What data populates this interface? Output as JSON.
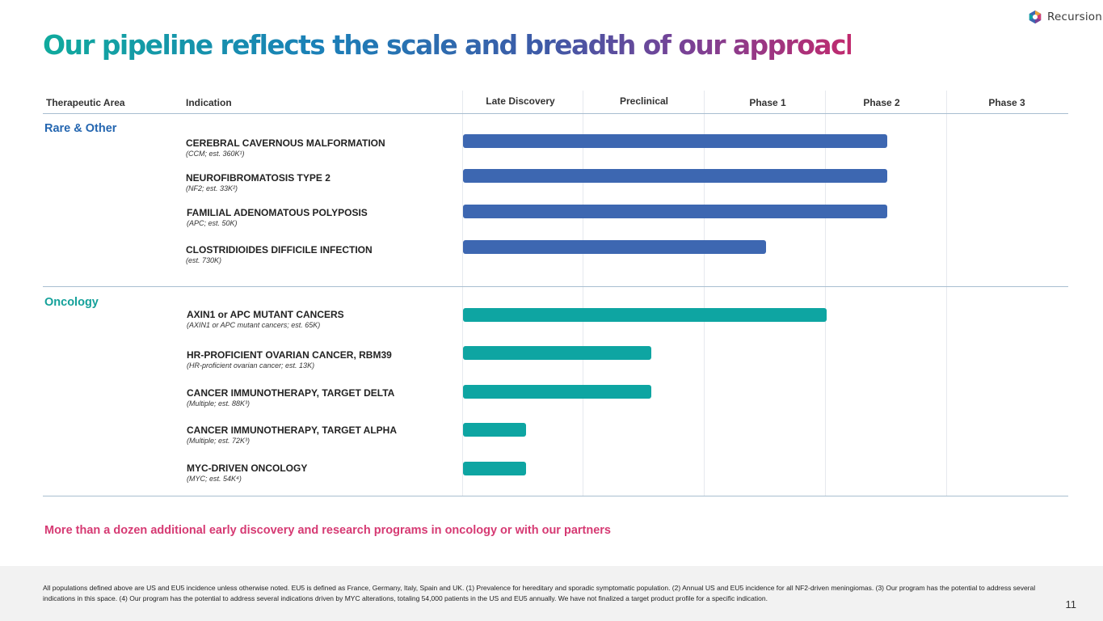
{
  "logo": {
    "text": "Recursion"
  },
  "title": "Our pipeline reflects the scale and breadth of our approach",
  "columns": {
    "therapeutic_area": "Therapeutic Area",
    "indication": "Indication",
    "stages": [
      "Late Discovery",
      "Preclinical",
      "Phase 1",
      "Phase 2",
      "Phase 3"
    ]
  },
  "areas": {
    "rare": "Rare & Other",
    "oncology": "Oncology"
  },
  "programs": [
    {
      "name": "CEREBRAL CAVERNOUS MALFORMATION",
      "sub": "(CCM; est. 360K¹)",
      "area": "rare",
      "progress_stages": 3.5
    },
    {
      "name": "NEUROFIBROMATOSIS TYPE 2",
      "sub": "(NF2; est. 33K²)",
      "area": "rare",
      "progress_stages": 3.5
    },
    {
      "name": "FAMILIAL ADENOMATOUS POLYPOSIS",
      "sub": "(APC; est. 50K)",
      "area": "rare",
      "progress_stages": 3.5
    },
    {
      "name": "CLOSTRIDIOIDES DIFFICILE INFECTION",
      "sub": "(est. 730K)",
      "area": "rare",
      "progress_stages": 2.5
    },
    {
      "name": "AXIN1 or APC MUTANT CANCERS",
      "sub": "(AXIN1 or APC mutant cancers; est. 65K)",
      "area": "oncology",
      "progress_stages": 3.0
    },
    {
      "name": "HR-PROFICIENT OVARIAN CANCER, RBM39",
      "sub": "(HR-proficient ovarian cancer; est. 13K)",
      "area": "oncology",
      "progress_stages": 1.55
    },
    {
      "name": "CANCER IMMUNOTHERAPY, TARGET DELTA",
      "sub": "(Multiple; est. 88K³)",
      "area": "oncology",
      "progress_stages": 1.55
    },
    {
      "name": "CANCER IMMUNOTHERAPY, TARGET ALPHA",
      "sub": "(Multiple; est. 72K³)",
      "area": "oncology",
      "progress_stages": 0.52
    },
    {
      "name": "MYC-DRIVEN ONCOLOGY",
      "sub": "(MYC; est. 54K⁴)",
      "area": "oncology",
      "progress_stages": 0.52
    }
  ],
  "note": "More than a dozen additional early discovery and research programs in oncology or with our partners",
  "footnote": "All populations defined above are US and EU5 incidence unless otherwise noted. EU5 is defined as France, Germany, Italy, Spain and UK. (1) Prevalence for hereditary and sporadic symptomatic population. (2) Annual US and EU5 incidence for all NF2-driven meningiomas. (3) Our program has the potential to address several indications in this space. (4) Our program has the potential to address several indications driven by MYC alterations, totaling 54,000 patients in the US and EU5 annually. We have not finalized a target product profile for a specific indication.",
  "page_number": "11",
  "colors": {
    "rare": "#3d67b1",
    "oncology": "#0ea5a2",
    "note": "#d63a73"
  }
}
